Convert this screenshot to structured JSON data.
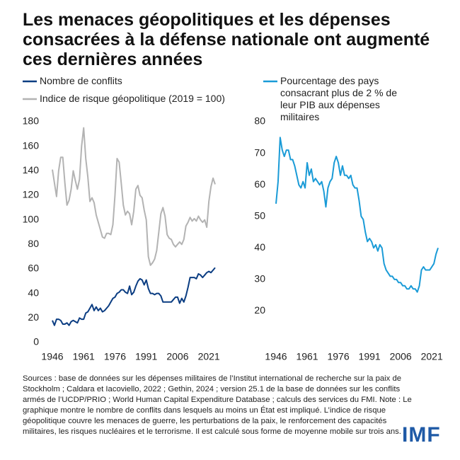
{
  "title": "Les menaces géopolitiques et les dépenses consacrées à la défense nationale ont augmenté ces dernières années",
  "note": "Sources : base de données sur les dépenses militaires de l’Institut international de recherche sur la paix de Stockholm ; Caldara et Iacoviello, 2022 ; Gethin, 2024 ; version 25.1 de la base de données sur les conflits armés de l’UCDP/PRIO ; World Human Capital Expenditure Database ; calculs des services du FMI. Note : Le graphique montre le nombre de conflits dans lesquels au moins un État est impliqué. L’indice de risque géopolitique couvre les menaces de guerre, les perturbations de la paix, le renforcement des capacités militaires, les risques nucléaires et le terrorisme. Il est calculé sous forme de moyenne mobile sur trois ans.",
  "logo": "IMF",
  "chart_data": [
    {
      "type": "line",
      "x": [
        1946,
        1947,
        1948,
        1949,
        1950,
        1951,
        1952,
        1953,
        1954,
        1955,
        1956,
        1957,
        1958,
        1959,
        1960,
        1961,
        1962,
        1963,
        1964,
        1965,
        1966,
        1967,
        1968,
        1969,
        1970,
        1971,
        1972,
        1973,
        1974,
        1975,
        1976,
        1977,
        1978,
        1979,
        1980,
        1981,
        1982,
        1983,
        1984,
        1985,
        1986,
        1987,
        1988,
        1989,
        1990,
        1991,
        1992,
        1993,
        1994,
        1995,
        1996,
        1997,
        1998,
        1999,
        2000,
        2001,
        2002,
        2003,
        2004,
        2005,
        2006,
        2007,
        2008,
        2009,
        2010,
        2011,
        2012,
        2013,
        2014,
        2015,
        2016,
        2017,
        2018,
        2019,
        2020,
        2021,
        2022,
        2023,
        2024
      ],
      "series": [
        {
          "name": "Nombre de conflits",
          "color": "#0b3d82",
          "values": [
            18,
            14,
            19,
            19,
            18,
            15,
            15,
            16,
            14,
            17,
            18,
            17,
            16,
            20,
            19,
            19,
            24,
            25,
            28,
            31,
            26,
            29,
            26,
            28,
            25,
            26,
            28,
            30,
            33,
            36,
            37,
            40,
            41,
            43,
            43,
            41,
            40,
            46,
            39,
            41,
            46,
            50,
            52,
            51,
            47,
            51,
            44,
            40,
            40,
            39,
            40,
            40,
            38,
            33,
            33,
            33,
            33,
            33,
            35,
            37,
            37,
            32,
            36,
            33,
            38,
            45,
            53,
            53,
            53,
            52,
            56,
            55,
            53,
            55,
            57,
            58,
            57,
            59,
            61
          ]
        },
        {
          "name": "Indice de risque géopolitique (2019 = 100)",
          "color": "#b3b3b3",
          "values": [
            141,
            130,
            119,
            140,
            151,
            151,
            130,
            112,
            116,
            125,
            140,
            132,
            125,
            133,
            160,
            175,
            150,
            135,
            115,
            118,
            114,
            104,
            98,
            92,
            86,
            85,
            89,
            89,
            88,
            96,
            120,
            150,
            147,
            130,
            112,
            104,
            107,
            105,
            96,
            107,
            125,
            128,
            120,
            118,
            108,
            100,
            70,
            63,
            65,
            68,
            75,
            90,
            105,
            110,
            103,
            88,
            85,
            84,
            80,
            78,
            80,
            82,
            80,
            84,
            95,
            98,
            102,
            99,
            101,
            99,
            103,
            100,
            98,
            100,
            94,
            115,
            127,
            134,
            129
          ]
        }
      ],
      "xlim": [
        1946,
        2024
      ],
      "xticks": [
        1946,
        1961,
        1976,
        1991,
        2006,
        2021
      ],
      "ylim": [
        0,
        180
      ],
      "yticks": [
        0,
        20,
        40,
        60,
        80,
        100,
        120,
        140,
        160,
        180
      ],
      "grid": false
    },
    {
      "type": "line",
      "x": [
        1946,
        1947,
        1948,
        1949,
        1950,
        1951,
        1952,
        1953,
        1954,
        1955,
        1956,
        1957,
        1958,
        1959,
        1960,
        1961,
        1962,
        1963,
        1964,
        1965,
        1966,
        1967,
        1968,
        1969,
        1970,
        1971,
        1972,
        1973,
        1974,
        1975,
        1976,
        1977,
        1978,
        1979,
        1980,
        1981,
        1982,
        1983,
        1984,
        1985,
        1986,
        1987,
        1988,
        1989,
        1990,
        1991,
        1992,
        1993,
        1994,
        1995,
        1996,
        1997,
        1998,
        1999,
        2000,
        2001,
        2002,
        2003,
        2004,
        2005,
        2006,
        2007,
        2008,
        2009,
        2010,
        2011,
        2012,
        2013,
        2014,
        2015,
        2016,
        2017,
        2018,
        2019,
        2020,
        2021,
        2022,
        2023,
        2024
      ],
      "series": [
        {
          "name": "Pourcentage des pays consacrant plus de 2 % de leur PIB aux dépenses militaires",
          "color": "#1a9bd7",
          "values": [
            54,
            61,
            75,
            71,
            69,
            71,
            71,
            68,
            68,
            66,
            63,
            60,
            59,
            61,
            59,
            67,
            63,
            65,
            61,
            62,
            61,
            60,
            61,
            58,
            53,
            59,
            61,
            62,
            67,
            69,
            67,
            63,
            66,
            63,
            63,
            62,
            63,
            60,
            59,
            59,
            55,
            50,
            49,
            45,
            42,
            43,
            42,
            40,
            41,
            39,
            41,
            40,
            35,
            33,
            32,
            31,
            31,
            30,
            30,
            29,
            29,
            28,
            28,
            27,
            27,
            28,
            27,
            27,
            26,
            28,
            33,
            34,
            33,
            33,
            33,
            34,
            35,
            38,
            40
          ]
        }
      ],
      "xlim": [
        1946,
        2024
      ],
      "xticks": [
        1946,
        1961,
        1976,
        1991,
        2006,
        2021
      ],
      "ylim": [
        10,
        80
      ],
      "yticks": [
        20,
        30,
        40,
        50,
        60,
        70,
        80
      ],
      "grid": false
    }
  ]
}
